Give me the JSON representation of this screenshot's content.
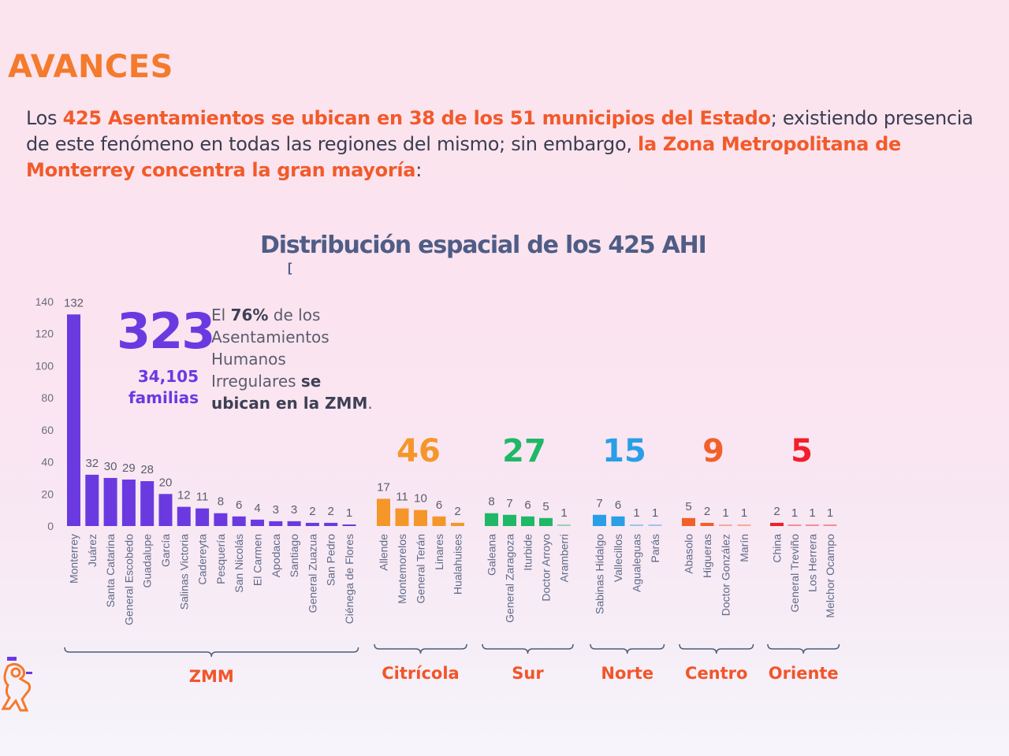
{
  "page": {
    "title": "AVANCES",
    "paragraph": [
      {
        "text": "Los ",
        "highlight": false
      },
      {
        "text": "425 Asentamientos se ubican en 38 de los 51 municipios del Estado",
        "highlight": true
      },
      {
        "text": "; existiendo presencia de este fenómeno en todas las regiones del mismo; sin embargo, ",
        "highlight": false
      },
      {
        "text": "la Zona Metropolitana de Monterrey concentra la gran mayoría",
        "highlight": true
      },
      {
        "text": ":",
        "highlight": false
      }
    ],
    "cursor_mark": "[",
    "callout": {
      "number": "323",
      "families_number": "34,105",
      "families_label": "familias",
      "desc_1": "El ",
      "desc_pct": "76%",
      "desc_2": " de los",
      "desc_3": "Asentamientos",
      "desc_4": "Humanos",
      "desc_5": "Irregulares ",
      "desc_bold_1": "se",
      "desc_bold_2": "ubican en la ZMM",
      "desc_end": "."
    },
    "colors": {
      "title": "#f47a2c",
      "highlight": "#f25a2a",
      "region_label": "#f2552a",
      "brace": "#4a5d7a"
    }
  },
  "chart_data": {
    "type": "bar",
    "title": "Distribución espacial de los 425 AHI",
    "xlabel": "",
    "ylabel": "",
    "ylim": [
      0,
      140
    ],
    "yticks": [
      0,
      20,
      40,
      60,
      80,
      100,
      120,
      140
    ],
    "grid": false,
    "groups": [
      {
        "name": "ZMM",
        "total": 323,
        "color": "#6a3ae0",
        "categories": [
          "Monterrey",
          "Juárez",
          "Santa Catarina",
          "General Escobedo",
          "Guadalupe",
          "García",
          "Salinas Victoria",
          "Cadereyta",
          "Pesquería",
          "San Nicolás",
          "El Carmen",
          "Apodaca",
          "Santiago",
          "General Zuazua",
          "San Pedro",
          "Ciénega de Flores"
        ],
        "values": [
          132,
          32,
          30,
          29,
          28,
          20,
          12,
          11,
          8,
          6,
          4,
          3,
          3,
          2,
          2,
          1
        ]
      },
      {
        "name": "Citrícola",
        "total": 46,
        "color": "#f5962a",
        "categories": [
          "Allende",
          "Montemorelos",
          "General Terán",
          "Linares",
          "Hualahuises"
        ],
        "values": [
          17,
          11,
          10,
          6,
          2
        ]
      },
      {
        "name": "Sur",
        "total": 27,
        "color": "#1fb866",
        "categories": [
          "Galeana",
          "General Zaragoza",
          "Iturbide",
          "Doctor Arroyo",
          "Aramberri"
        ],
        "values": [
          8,
          7,
          6,
          5,
          1
        ]
      },
      {
        "name": "Norte",
        "total": 15,
        "color": "#2a9ee6",
        "categories": [
          "Sabinas Hidalgo",
          "Vallecillos",
          "Agualeguas",
          "Parás"
        ],
        "values": [
          7,
          6,
          1,
          1
        ]
      },
      {
        "name": "Centro",
        "total": 9,
        "color": "#f2602a",
        "categories": [
          "Abasolo",
          "Higueras",
          "Doctor González",
          "Marín"
        ],
        "values": [
          5,
          2,
          1,
          1
        ]
      },
      {
        "name": "Oriente",
        "total": 5,
        "color": "#f01f2a",
        "categories": [
          "China",
          "General Treviño",
          "Los Herrera",
          "Melchor Ocampo"
        ],
        "values": [
          2,
          1,
          1,
          1
        ]
      }
    ]
  }
}
